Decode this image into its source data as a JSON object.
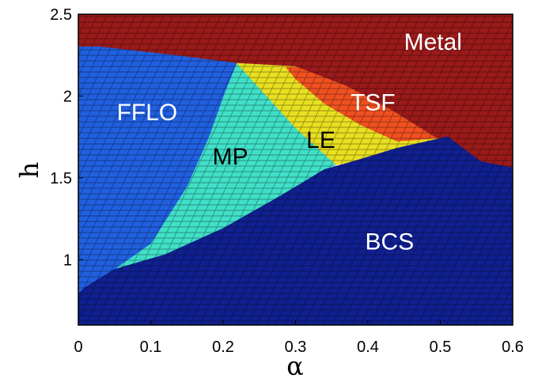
{
  "chart_data": {
    "type": "heatmap",
    "title": "",
    "xlabel": "α",
    "ylabel": "h",
    "xlim": [
      0,
      0.6
    ],
    "ylim": [
      0.6,
      2.5
    ],
    "xticks": [
      "0",
      "0.1",
      "0.2",
      "0.3",
      "0.4",
      "0.5",
      "0.6"
    ],
    "yticks": [
      "1",
      "1.5",
      "2",
      "2.5"
    ],
    "grid": false,
    "regions": [
      {
        "name": "Metal",
        "color": "#9a1a1a",
        "label_pos": [
          0.49,
          2.32
        ],
        "label_color": "#ffffff",
        "polygon": [
          [
            0,
            2.5
          ],
          [
            0.6,
            2.5
          ],
          [
            0.6,
            1.56
          ],
          [
            0.555,
            1.6
          ],
          [
            0.51,
            1.7
          ],
          [
            0.43,
            1.92
          ],
          [
            0.37,
            2.06
          ],
          [
            0.3,
            2.18
          ],
          [
            0.22,
            2.2
          ],
          [
            0.13,
            2.25
          ],
          [
            0.03,
            2.3
          ],
          [
            0,
            2.3
          ]
        ]
      },
      {
        "name": "TSF",
        "color": "#f05020",
        "label_pos": [
          0.407,
          1.95
        ],
        "label_color": "#ffffff",
        "polygon": [
          [
            0.3,
            2.18
          ],
          [
            0.37,
            2.06
          ],
          [
            0.43,
            1.92
          ],
          [
            0.51,
            1.7
          ],
          [
            0.502,
            1.74
          ],
          [
            0.44,
            1.72
          ],
          [
            0.39,
            1.82
          ],
          [
            0.34,
            1.95
          ],
          [
            0.3,
            2.1
          ],
          [
            0.285,
            2.18
          ]
        ]
      },
      {
        "name": "LE",
        "color": "#e8e020",
        "label_pos": [
          0.335,
          1.72
        ],
        "label_color": "#000000",
        "polygon": [
          [
            0.218,
            2.2
          ],
          [
            0.3,
            2.18
          ],
          [
            0.285,
            2.18
          ],
          [
            0.3,
            2.1
          ],
          [
            0.34,
            1.95
          ],
          [
            0.39,
            1.82
          ],
          [
            0.44,
            1.72
          ],
          [
            0.5,
            1.74
          ],
          [
            0.44,
            1.68
          ],
          [
            0.38,
            1.6
          ],
          [
            0.355,
            1.58
          ],
          [
            0.3,
            1.8
          ]
        ]
      },
      {
        "name": "MP",
        "color": "#40e0c8",
        "label_pos": [
          0.21,
          1.62
        ],
        "label_color": "#000000",
        "polygon": [
          [
            0.218,
            2.2
          ],
          [
            0.3,
            1.8
          ],
          [
            0.355,
            1.58
          ],
          [
            0.34,
            1.55
          ],
          [
            0.28,
            1.39
          ],
          [
            0.2,
            1.19
          ],
          [
            0.12,
            1.03
          ],
          [
            0.05,
            0.94
          ],
          [
            0.055,
            0.96
          ],
          [
            0.1,
            1.1
          ],
          [
            0.15,
            1.45
          ],
          [
            0.18,
            1.75
          ],
          [
            0.2,
            2.0
          ]
        ]
      },
      {
        "name": "FFLO",
        "color": "#2060e0",
        "label_pos": [
          0.095,
          1.89
        ],
        "label_color": "#ffffff",
        "polygon": [
          [
            0,
            2.3
          ],
          [
            0.03,
            2.3
          ],
          [
            0.13,
            2.25
          ],
          [
            0.218,
            2.2
          ],
          [
            0.2,
            2.0
          ],
          [
            0.18,
            1.75
          ],
          [
            0.15,
            1.45
          ],
          [
            0.1,
            1.1
          ],
          [
            0.055,
            0.96
          ],
          [
            0.05,
            0.94
          ],
          [
            0.01,
            0.83
          ],
          [
            0,
            0.79
          ]
        ]
      },
      {
        "name": "BCS",
        "color": "#102090",
        "label_pos": [
          0.43,
          1.1
        ],
        "label_color": "#ffffff",
        "polygon": [
          [
            0,
            0.6
          ],
          [
            0.6,
            0.6
          ],
          [
            0.6,
            1.56
          ],
          [
            0.555,
            1.6
          ],
          [
            0.51,
            1.75
          ],
          [
            0.5,
            1.74
          ],
          [
            0.44,
            1.68
          ],
          [
            0.38,
            1.6
          ],
          [
            0.34,
            1.55
          ],
          [
            0.28,
            1.39
          ],
          [
            0.2,
            1.19
          ],
          [
            0.12,
            1.03
          ],
          [
            0.05,
            0.94
          ],
          [
            0.01,
            0.83
          ],
          [
            0,
            0.79
          ]
        ]
      }
    ]
  }
}
